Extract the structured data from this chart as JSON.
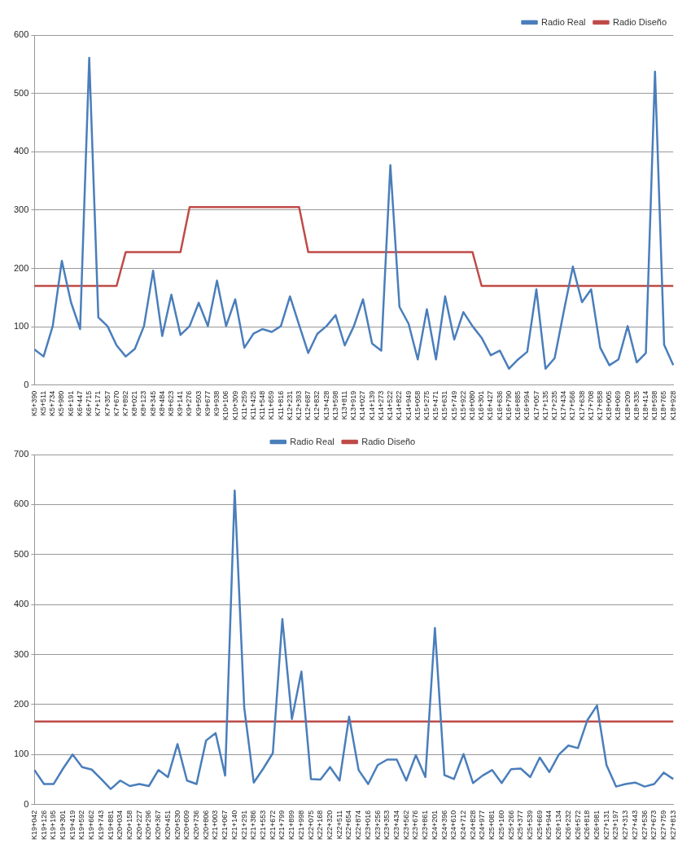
{
  "chart_data": [
    {
      "type": "line",
      "categories": [
        "K5+390",
        "K5+511",
        "K5+734",
        "K5+980",
        "K6+191",
        "K6+447",
        "K6+715",
        "K7+171",
        "K7+357",
        "K7+670",
        "K7+892",
        "K8+021",
        "K8+123",
        "K8+345",
        "K8+484",
        "K8+623",
        "K9+141",
        "K9+276",
        "K9+503",
        "K9+677",
        "K9+938",
        "K10+106",
        "K10+309",
        "K11+259",
        "K11+425",
        "K11+548",
        "K11+659",
        "K11+816",
        "K12+231",
        "K12+393",
        "K12+687",
        "K12+832",
        "K13+428",
        "K13+598",
        "K13+811",
        "K13+919",
        "K14+027",
        "K14+139",
        "K14+273",
        "K14+522",
        "K14+822",
        "K14+949",
        "K15+058",
        "K15+275",
        "K15+471",
        "K15+631",
        "K15+749",
        "K15+922",
        "K16+080",
        "K16+301",
        "K16+427",
        "K16+636",
        "K16+790",
        "K16+885",
        "K16+994",
        "K17+057",
        "K17+135",
        "K17+235",
        "K17+434",
        "K17+566",
        "K17+638",
        "K17+708",
        "K17+858",
        "K18+005",
        "K18+069",
        "K18+209",
        "K18+335",
        "K18+414",
        "K18+598",
        "K18+765",
        "K18+928"
      ],
      "series": [
        {
          "name": "Radio Real",
          "color": "#4a7ebb",
          "values": [
            61,
            49,
            101,
            213,
            142,
            96,
            561,
            116,
            101,
            68,
            49,
            62,
            101,
            196,
            84,
            155,
            86,
            101,
            141,
            101,
            179,
            101,
            147,
            64,
            88,
            96,
            91,
            101,
            152,
            103,
            55,
            88,
            101,
            120,
            68,
            101,
            147,
            71,
            59,
            377,
            134,
            105,
            44,
            130,
            44,
            152,
            78,
            125,
            101,
            81,
            51,
            59,
            28,
            44,
            57,
            164,
            28,
            46,
            126,
            203,
            142,
            164,
            64,
            34,
            44,
            101,
            39,
            55,
            537,
            69,
            34
          ]
        },
        {
          "name": "Radio Diseño",
          "color": "#be4b48",
          "values": [
            170,
            170,
            170,
            170,
            170,
            170,
            170,
            170,
            170,
            170,
            228,
            228,
            228,
            228,
            228,
            228,
            228,
            305,
            305,
            305,
            305,
            305,
            305,
            305,
            305,
            305,
            305,
            305,
            305,
            305,
            228,
            228,
            228,
            228,
            228,
            228,
            228,
            228,
            228,
            228,
            228,
            228,
            228,
            228,
            228,
            228,
            228,
            228,
            228,
            170,
            170,
            170,
            170,
            170,
            170,
            170,
            170,
            170,
            170,
            170,
            170,
            170,
            170,
            170,
            170,
            170,
            170,
            170,
            170,
            170,
            170
          ]
        }
      ],
      "ylim": [
        0,
        600
      ],
      "yticks": [
        0,
        100,
        200,
        300,
        400,
        500,
        600
      ],
      "grid": "y",
      "legend": "top right"
    },
    {
      "type": "line",
      "categories": [
        "K19+042",
        "K19+126",
        "K19+195",
        "K19+301",
        "K19+419",
        "K19+592",
        "K19+662",
        "K19+743",
        "K19+881",
        "K20+034",
        "K20+158",
        "K20+227",
        "K20+296",
        "K20+367",
        "K20+451",
        "K20+530",
        "K20+609",
        "K20+736",
        "K20+806",
        "K21+003",
        "K21+067",
        "K21+140",
        "K21+291",
        "K21+386",
        "K21+553",
        "K21+672",
        "K21+799",
        "K21+899",
        "K21+998",
        "K22+075",
        "K22+168",
        "K22+320",
        "K22+511",
        "K22+654",
        "K22+874",
        "K23+016",
        "K23+256",
        "K23+353",
        "K23+434",
        "K23+562",
        "K23+676",
        "K23+861",
        "K24+201",
        "K24+396",
        "K24+610",
        "K24+712",
        "K24+828",
        "K24+977",
        "K25+081",
        "K25+160",
        "K25+266",
        "K25+377",
        "K25+539",
        "K25+669",
        "K25+944",
        "K26+134",
        "K26+232",
        "K26+572",
        "K26+818",
        "K26+981",
        "K27+131",
        "K23+197",
        "K27+313",
        "K27+443",
        "K27+536",
        "K27+673",
        "K27+759",
        "K27+813"
      ],
      "series": [
        {
          "name": "Radio Real",
          "color": "#4a7ebb",
          "values": [
            69,
            41,
            41,
            72,
            100,
            75,
            70,
            51,
            31,
            48,
            37,
            41,
            37,
            69,
            55,
            121,
            48,
            41,
            128,
            143,
            58,
            628,
            194,
            44,
            72,
            103,
            371,
            171,
            266,
            51,
            50,
            75,
            48,
            176,
            69,
            41,
            79,
            90,
            90,
            48,
            99,
            55,
            353,
            59,
            51,
            101,
            43,
            58,
            69,
            43,
            71,
            72,
            55,
            94,
            65,
            100,
            118,
            113,
            169,
            198,
            79,
            36,
            41,
            44,
            36,
            41,
            64,
            51
          ]
        },
        {
          "name": "Radio Diseño",
          "color": "#be4b48",
          "values": [
            166,
            166,
            166,
            166,
            166,
            166,
            166,
            166,
            166,
            166,
            166,
            166,
            166,
            166,
            166,
            166,
            166,
            166,
            166,
            166,
            166,
            166,
            166,
            166,
            166,
            166,
            166,
            166,
            166,
            166,
            166,
            166,
            166,
            166,
            166,
            166,
            166,
            166,
            166,
            166,
            166,
            166,
            166,
            166,
            166,
            166,
            166,
            166,
            166,
            166,
            166,
            166,
            166,
            166,
            166,
            166,
            166,
            166,
            166,
            166,
            166,
            166,
            166,
            166,
            166,
            166,
            166,
            166
          ]
        }
      ],
      "ylim": [
        0,
        700
      ],
      "yticks": [
        0,
        100,
        200,
        300,
        400,
        500,
        600,
        700
      ],
      "grid": "y",
      "legend": "top"
    }
  ]
}
